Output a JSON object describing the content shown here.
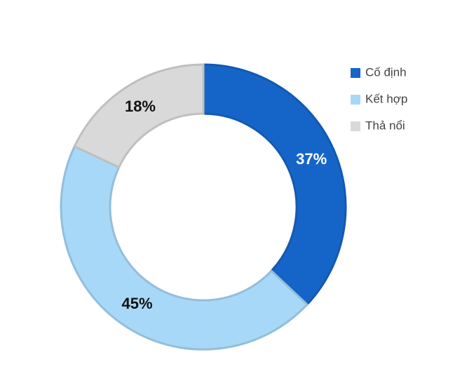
{
  "chart_data": {
    "type": "donut",
    "categories": [
      "Cố định",
      "Kết hợp",
      "Thả nổi"
    ],
    "values": [
      37,
      45,
      18
    ],
    "value_labels": [
      "37%",
      "45%",
      "18%"
    ],
    "colors": [
      "#1565c9",
      "#a8d8f8",
      "#d9d9d9"
    ],
    "label_colors": [
      "#ffffff",
      "#111111",
      "#111111"
    ],
    "legend": "top-right"
  }
}
